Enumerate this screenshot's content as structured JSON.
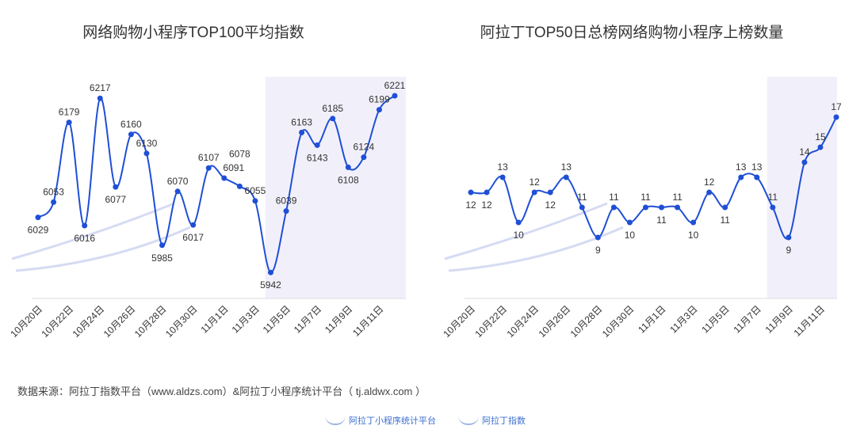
{
  "chart_data": [
    {
      "type": "line",
      "title": "网络购物小程序TOP100平均指数",
      "x": [
        "10月20日",
        "10月21日",
        "10月22日",
        "10月23日",
        "10月24日",
        "10月25日",
        "10月26日",
        "10月27日",
        "10月28日",
        "10月29日",
        "10月30日",
        "10月31日",
        "11月1日",
        "11月2日",
        "11月3日",
        "11月4日",
        "11月5日",
        "11月6日",
        "11月7日",
        "11月8日",
        "11月9日",
        "11月10日",
        "11月11日",
        "11月12日"
      ],
      "tick_labels": [
        "10月20日",
        "10月22日",
        "10月24日",
        "10月26日",
        "10月28日",
        "10月30日",
        "11月1日",
        "11月3日",
        "11月5日",
        "11月7日",
        "11月9日",
        "11月11日"
      ],
      "values": [
        6029,
        6053,
        6179,
        6016,
        6217,
        6077,
        6160,
        6130,
        5985,
        6070,
        6017,
        6107,
        6091,
        6078,
        6055,
        5942,
        6039,
        6163,
        6143,
        6185,
        6108,
        6124,
        6199,
        6221
      ],
      "ylim": [
        5900,
        6260
      ],
      "highlight_from_index": 15,
      "line_color": "#1f4fd6",
      "highlight_color": "#efedf9"
    },
    {
      "type": "line",
      "title": "阿拉丁TOP50日总榜网络购物小程序上榜数量",
      "x": [
        "10月20日",
        "10月21日",
        "10月22日",
        "10月23日",
        "10月24日",
        "10月25日",
        "10月26日",
        "10月27日",
        "10月28日",
        "10月29日",
        "10月30日",
        "10月31日",
        "11月1日",
        "11月2日",
        "11月3日",
        "11月4日",
        "11月5日",
        "11月6日",
        "11月7日",
        "11月8日",
        "11月9日",
        "11月10日",
        "11月11日",
        "11月12日"
      ],
      "tick_labels": [
        "10月20日",
        "10月22日",
        "10月24日",
        "10月26日",
        "10月28日",
        "10月30日",
        "11月1日",
        "11月3日",
        "11月5日",
        "11月7日",
        "11月9日",
        "11月11日"
      ],
      "values": [
        12,
        12,
        13,
        10,
        12,
        12,
        13,
        11,
        9,
        11,
        10,
        11,
        11,
        11,
        10,
        12,
        11,
        13,
        13,
        11,
        9,
        14,
        15,
        17
      ],
      "ylim": [
        7,
        18
      ],
      "highlight_from_index": 19,
      "line_color": "#1f4fd6",
      "highlight_color": "#efedf9"
    }
  ],
  "footer": {
    "source": "数据来源：阿拉丁指数平台（www.aldzs.com）&阿拉丁小程序统计平台（ tj.aldwx.com ）",
    "logo1": "阿拉丁小程序统计平台",
    "logo2": "阿拉丁指数"
  },
  "watermark": "阿拉丁"
}
